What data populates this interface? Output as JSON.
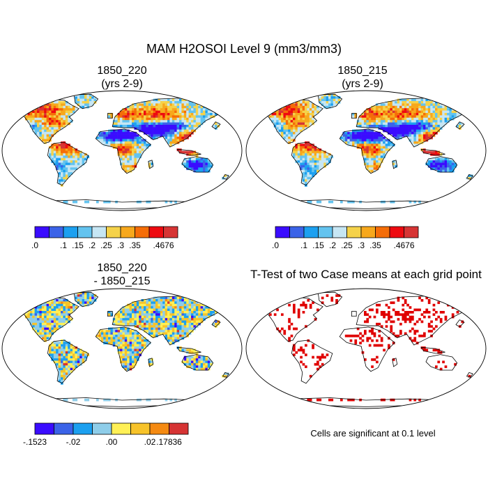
{
  "title": "MAM H2OSOI Level 9 (mm3/mm3)",
  "panels": [
    {
      "id": "p1",
      "title_line1": "1850_220",
      "title_line2": "(yrs 2-9)",
      "type": "field"
    },
    {
      "id": "p2",
      "title_line1": "1850_215",
      "title_line2": "(yrs 2-9)",
      "type": "field"
    },
    {
      "id": "p3",
      "title_line1": "1850_220",
      "title_line2": "- 1850_215",
      "type": "difference"
    },
    {
      "id": "p4",
      "title_line1": "T-Test of two Case means at each grid point",
      "note": "Cells are significant at 0.1 level",
      "type": "significance",
      "color": "#e00000"
    }
  ],
  "colorbars": {
    "field": {
      "colors": [
        "#3a0cff",
        "#3b63e8",
        "#1ca0f0",
        "#63c3ef",
        "#c6e6f4",
        "#f5d24a",
        "#f7a81c",
        "#f56d08",
        "#ee0a10",
        "#d63434"
      ],
      "labels": [
        {
          "text": ".0",
          "boundary": 0
        },
        {
          "text": ".1",
          "boundary": 2
        },
        {
          "text": ".15",
          "boundary": 3
        },
        {
          "text": ".2",
          "boundary": 4
        },
        {
          "text": ".25",
          "boundary": 5
        },
        {
          "text": ".3",
          "boundary": 6
        },
        {
          "text": ".35",
          "boundary": 7
        },
        {
          "text": ".4676",
          "boundary": 9
        }
      ]
    },
    "difference": {
      "colors": [
        "#3a0cff",
        "#3b63e8",
        "#1ca0f0",
        "#8ecde9",
        "#fff056",
        "#f7c32a",
        "#f58a12",
        "#d63434"
      ],
      "labels": [
        {
          "text": "-.1523",
          "boundary": 0
        },
        {
          "text": "-.02",
          "boundary": 2
        },
        {
          "text": ".00",
          "boundary": 4
        },
        {
          "text": ".02",
          "boundary": 6
        },
        {
          "text": ".17836",
          "boundary": 7
        }
      ]
    }
  }
}
